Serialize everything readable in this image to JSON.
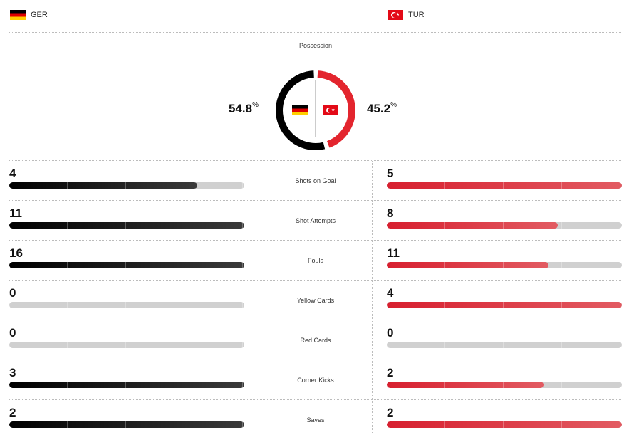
{
  "teams": {
    "home": {
      "code": "GER",
      "flag": "germany-flag"
    },
    "away": {
      "code": "TUR",
      "flag": "turkey-flag"
    }
  },
  "possession": {
    "label": "Possession",
    "home_value": "54.8",
    "away_value": "45.2",
    "unit": "%",
    "home_color": "#000000",
    "away_color": "#e3252e"
  },
  "stats": [
    {
      "label": "Shots on Goal",
      "home": "4",
      "away": "5",
      "home_fill": 0.8,
      "away_fill": 1.0
    },
    {
      "label": "Shot Attempts",
      "home": "11",
      "away": "8",
      "home_fill": 1.0,
      "away_fill": 0.727
    },
    {
      "label": "Fouls",
      "home": "16",
      "away": "11",
      "home_fill": 1.0,
      "away_fill": 0.6875
    },
    {
      "label": "Yellow Cards",
      "home": "0",
      "away": "4",
      "home_fill": 0.0,
      "away_fill": 1.0
    },
    {
      "label": "Red Cards",
      "home": "0",
      "away": "0",
      "home_fill": 0.0,
      "away_fill": 0.0
    },
    {
      "label": "Corner Kicks",
      "home": "3",
      "away": "2",
      "home_fill": 1.0,
      "away_fill": 0.667
    },
    {
      "label": "Saves",
      "home": "2",
      "away": "2",
      "home_fill": 1.0,
      "away_fill": 1.0
    }
  ],
  "colors": {
    "home_bar": "#000000",
    "away_bar": "#d71f2f",
    "track": "#d0d0d0"
  }
}
